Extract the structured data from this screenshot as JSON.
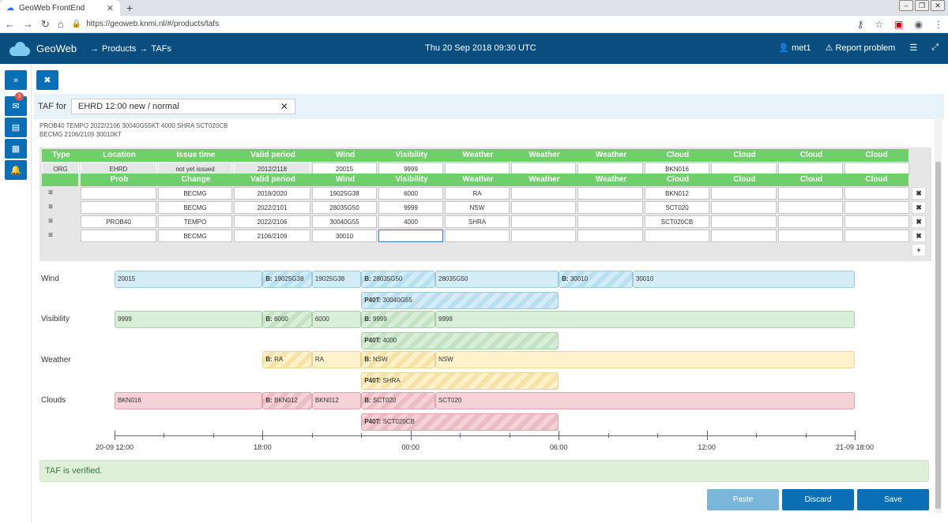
{
  "browser": {
    "tab_title": "GeoWeb FrontEnd",
    "url": "https://geoweb.knmi.nl/#/products/tafs"
  },
  "app": {
    "brand": "GeoWeb",
    "crumb1": "Products",
    "crumb2": "TAFs",
    "datetime": "Thu 20 Sep 2018 09:30 UTC",
    "user": "met1",
    "report": "Report problem"
  },
  "sidebar": {
    "notifications": "3"
  },
  "taf": {
    "label": "TAF for",
    "selected": "EHRD 12:00 new / normal",
    "raw1": "PROB40 TEMPO 2022/2106 30040G55KT 4000 SHRA SCT020CB",
    "raw2": "BECMG 2106/2109 30010KT"
  },
  "table": {
    "base_headers": [
      "Type",
      "Location",
      "Issue time",
      "Valid period",
      "Wind",
      "Visibility",
      "Weather",
      "Weather",
      "Weather",
      "Cloud",
      "Cloud",
      "Cloud",
      "Cloud"
    ],
    "base_row": [
      "ORG",
      "EHRD",
      "not yet issued",
      "2012/2118",
      "20015",
      "9999",
      "",
      "",
      "",
      "BKN016",
      "",
      "",
      ""
    ],
    "change_headers": [
      "Prob",
      "Change",
      "Valid period",
      "Wind",
      "Visibility",
      "Weather",
      "Weather",
      "Weather",
      "Cloud",
      "Cloud",
      "Cloud",
      "Cloud"
    ],
    "rows": [
      [
        "",
        "BECMG",
        "2018/2020",
        "19025G38",
        "6000",
        "RA",
        "",
        "",
        "BKN012",
        "",
        "",
        ""
      ],
      [
        "",
        "BECMG",
        "2022/2101",
        "28035G50",
        "9999",
        "NSW",
        "",
        "",
        "SCT020",
        "",
        "",
        ""
      ],
      [
        "PROB40",
        "TEMPO",
        "2022/2106",
        "30040G55",
        "4000",
        "SHRA",
        "",
        "",
        "SCT020CB",
        "",
        "",
        ""
      ],
      [
        "",
        "BECMG",
        "2106/2109",
        "30010",
        "",
        "",
        "",
        "",
        "",
        "",
        "",
        ""
      ]
    ]
  },
  "timeline": {
    "labels": [
      "Wind",
      "Visibility",
      "Weather",
      "Clouds"
    ],
    "wind": [
      "20015",
      "B:",
      "19025G38",
      "19025G38",
      "B:",
      "28035G50",
      "28035G50",
      "B:",
      "30010",
      "30010",
      "P40T:",
      "30040G55"
    ],
    "visibility": [
      "9999",
      "B:",
      "6000",
      "6000",
      "B:",
      "9999",
      "9999",
      "P40T:",
      "4000"
    ],
    "weather": [
      "B:",
      "RA",
      "RA",
      "B:",
      "NSW",
      "NSW",
      "P40T:",
      "SHRA"
    ],
    "clouds": [
      "BKN016",
      "B:",
      "BKN012",
      "BKN012",
      "B:",
      "SCT020",
      "SCT020",
      "P40T:",
      "SCT020CB"
    ],
    "ticks": [
      "20-09 12:00",
      "18:00",
      "00:00",
      "06:00",
      "12:00",
      "21-09 18:00"
    ]
  },
  "status": "TAF is verified.",
  "actions": {
    "paste": "Paste",
    "discard": "Discard",
    "save": "Save"
  },
  "colors": {
    "appbar": "#0a4e7f",
    "header_green": "#6fcf6a",
    "button_blue": "#0a6fb4"
  }
}
